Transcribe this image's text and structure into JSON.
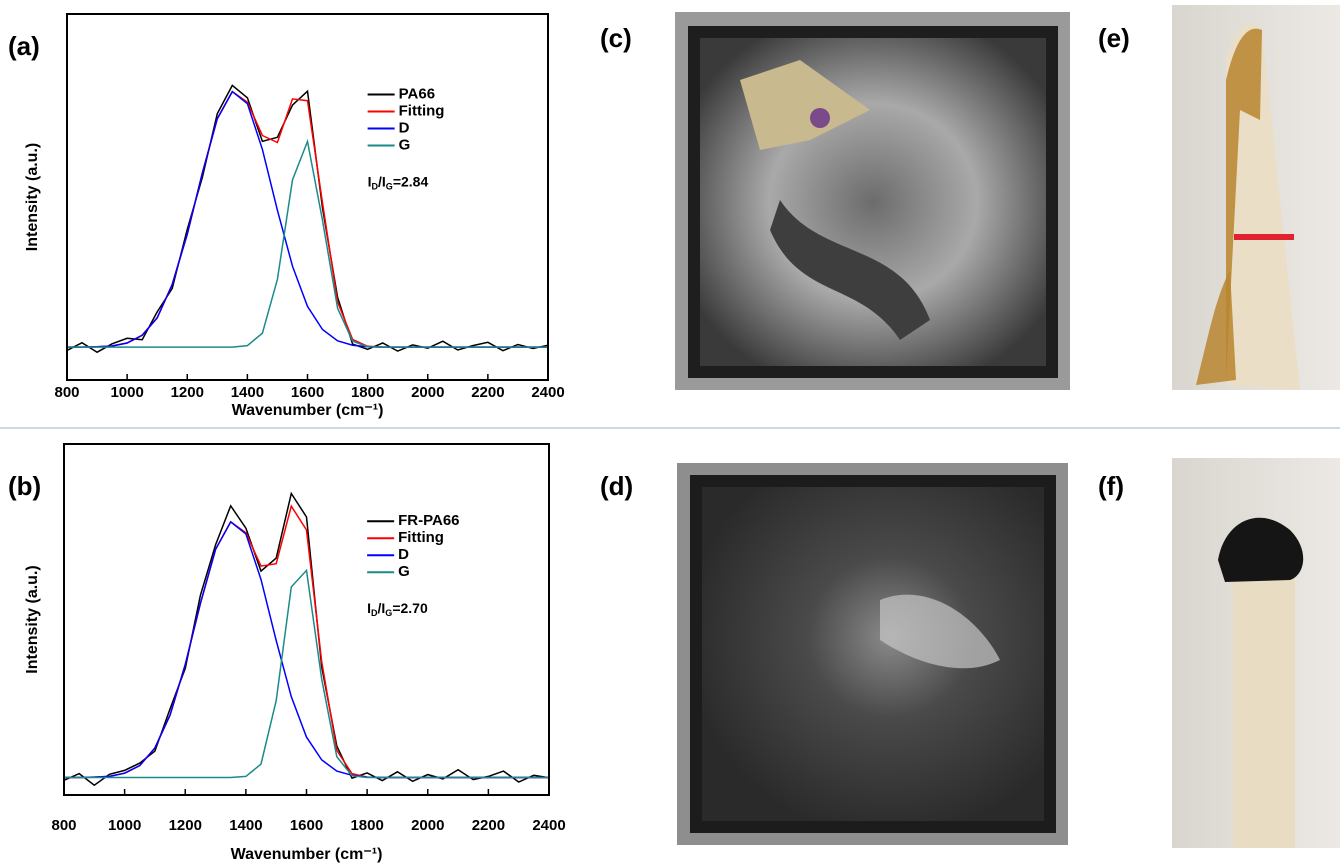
{
  "chart_data": [
    {
      "type": "line",
      "panel": "(a)",
      "xlabel": "Wavenumber (cm⁻¹)",
      "ylabel": "Intensity (a.u.)",
      "x": [
        800,
        850,
        900,
        950,
        1000,
        1050,
        1100,
        1150,
        1200,
        1250,
        1300,
        1350,
        1400,
        1450,
        1500,
        1550,
        1600,
        1650,
        1700,
        1750,
        1800,
        1850,
        1900,
        1950,
        2000,
        2050,
        2100,
        2150,
        2200,
        2250,
        2300,
        2350,
        2400
      ],
      "xlim": [
        800,
        2400
      ],
      "xticks": [
        800,
        1000,
        1200,
        1400,
        1600,
        1800,
        2000,
        2200,
        2400
      ],
      "ylim": [
        0,
        100
      ],
      "series": [
        {
          "name": "PA66",
          "color": "#000000",
          "values": [
            8.1,
            10.2,
            7.6,
            9.9,
            11.4,
            11.0,
            18.6,
            25.0,
            41.2,
            55.3,
            72.8,
            80.5,
            77.1,
            65.2,
            66.3,
            75.1,
            78.9,
            47.0,
            22.6,
            9.8,
            8.4,
            10.1,
            7.9,
            9.6,
            8.7,
            10.6,
            8.2,
            9.4,
            10.3,
            8.0,
            9.7,
            8.6,
            9.5
          ]
        },
        {
          "name": "Fitting",
          "color": "#ff0000",
          "values": [
            9.0,
            9.0,
            9.1,
            9.3,
            10.1,
            12.2,
            17.0,
            26.1,
            39.9,
            56.5,
            71.4,
            78.8,
            75.9,
            66.8,
            64.9,
            76.8,
            76.3,
            48.4,
            21.3,
            11.1,
            9.2,
            9.0,
            9.0,
            9.0,
            9.0,
            9.0,
            9.0,
            9.0,
            9.0,
            9.0,
            9.0,
            9.0,
            9.0
          ]
        },
        {
          "name": "D",
          "color": "#0000ff",
          "values": [
            9.0,
            9.0,
            9.1,
            9.3,
            10.1,
            12.2,
            17.0,
            26.1,
            39.9,
            56.5,
            71.4,
            78.8,
            75.5,
            63.0,
            46.4,
            31.1,
            20.1,
            13.8,
            10.7,
            9.5,
            9.1,
            9.0,
            9.0,
            9.0,
            9.0,
            9.0,
            9.0,
            9.0,
            9.0,
            9.0,
            9.0,
            9.0,
            9.0
          ]
        },
        {
          "name": "G",
          "color": "#1a8a8a",
          "values": [
            9.0,
            9.0,
            9.0,
            9.0,
            9.0,
            9.0,
            9.0,
            9.0,
            9.0,
            9.0,
            9.0,
            9.0,
            9.4,
            12.8,
            27.5,
            54.7,
            65.2,
            43.6,
            19.6,
            10.6,
            9.1,
            9.0,
            9.0,
            9.0,
            9.0,
            9.0,
            9.0,
            9.0,
            9.0,
            9.0,
            9.0,
            9.0,
            9.0
          ]
        }
      ],
      "annotation": [
        {
          "text": "I"
        },
        {
          "text": "D",
          "sub": true
        },
        {
          "text": "/I"
        },
        {
          "text": "G",
          "sub": true
        },
        {
          "text": "=2.84"
        }
      ]
    },
    {
      "type": "line",
      "panel": "(b)",
      "xlabel": "Wavenumber (cm⁻¹)",
      "ylabel": "Intensity (a.u.)",
      "x": [
        800,
        850,
        900,
        950,
        1000,
        1050,
        1100,
        1150,
        1200,
        1250,
        1300,
        1350,
        1400,
        1450,
        1500,
        1550,
        1600,
        1650,
        1700,
        1750,
        1800,
        1850,
        1900,
        1950,
        2000,
        2050,
        2100,
        2150,
        2200,
        2250,
        2300,
        2350,
        2400
      ],
      "xlim": [
        800,
        2400
      ],
      "xticks": [
        800,
        1000,
        1200,
        1400,
        1600,
        1800,
        2000,
        2200,
        2400
      ],
      "ylim": [
        0,
        100
      ],
      "series": [
        {
          "name": "FR-PA66",
          "color": "#000000",
          "values": [
            4.2,
            6.1,
            2.8,
            5.9,
            7.0,
            9.1,
            12.5,
            24.6,
            36.1,
            56.9,
            71.3,
            82.4,
            76.0,
            63.8,
            67.5,
            85.9,
            79.2,
            36.5,
            14.0,
            4.8,
            6.3,
            4.1,
            6.6,
            3.9,
            5.8,
            4.6,
            7.2,
            4.4,
            5.3,
            6.8,
            3.7,
            5.6,
            4.9
          ]
        },
        {
          "name": "Fitting",
          "color": "#ff0000",
          "values": [
            5.0,
            5.0,
            5.1,
            5.3,
            6.2,
            8.4,
            13.4,
            22.8,
            37.2,
            54.6,
            70.0,
            77.8,
            74.7,
            65.2,
            65.9,
            82.3,
            75.5,
            38.0,
            12.7,
            6.1,
            5.1,
            5.0,
            5.0,
            5.0,
            5.0,
            5.0,
            5.0,
            5.0,
            5.0,
            5.0,
            5.0,
            5.0,
            5.0
          ]
        },
        {
          "name": "D",
          "color": "#0000ff",
          "values": [
            5.0,
            5.0,
            5.1,
            5.3,
            6.2,
            8.4,
            13.4,
            22.8,
            37.2,
            54.6,
            70.0,
            77.8,
            74.4,
            61.4,
            44.0,
            28.0,
            16.5,
            10.0,
            6.8,
            5.6,
            5.1,
            5.0,
            5.0,
            5.0,
            5.0,
            5.0,
            5.0,
            5.0,
            5.0,
            5.0,
            5.0,
            5.0,
            5.0
          ]
        },
        {
          "name": "G",
          "color": "#1a8a8a",
          "values": [
            5.0,
            5.0,
            5.0,
            5.0,
            5.0,
            5.0,
            5.0,
            5.0,
            5.0,
            5.0,
            5.0,
            5.0,
            5.3,
            8.8,
            26.9,
            59.3,
            64.0,
            33.0,
            10.9,
            5.5,
            5.0,
            5.0,
            5.0,
            5.0,
            5.0,
            5.0,
            5.0,
            5.0,
            5.0,
            5.0,
            5.0,
            5.0,
            5.0
          ]
        }
      ],
      "annotation": [
        {
          "text": "I"
        },
        {
          "text": "D",
          "sub": true
        },
        {
          "text": "/I"
        },
        {
          "text": "G",
          "sub": true
        },
        {
          "text": "=2.70"
        }
      ]
    }
  ],
  "panel_labels": [
    "(c)",
    "(d)",
    "(e)",
    "(f)"
  ]
}
